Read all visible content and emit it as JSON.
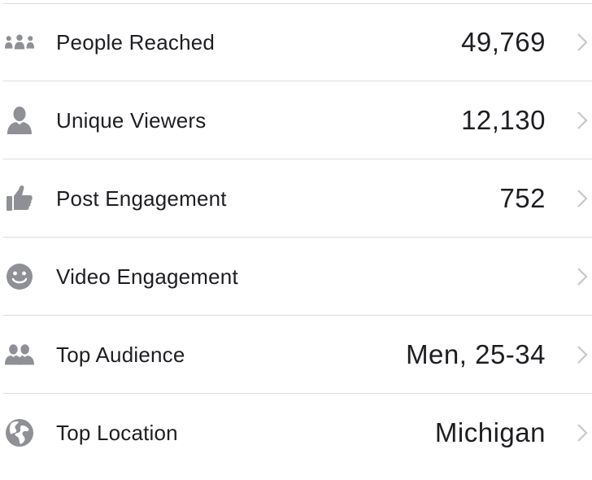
{
  "colors": {
    "text": "#1d1e22",
    "icon": "#8e9095",
    "chevron": "#c7c8cc",
    "divider": "#dcdde0"
  },
  "stats": [
    {
      "icon": "people-group-icon",
      "label": "People Reached",
      "value": "49,769"
    },
    {
      "icon": "person-icon",
      "label": "Unique Viewers",
      "value": "12,130"
    },
    {
      "icon": "thumbs-up-icon",
      "label": "Post Engagement",
      "value": "752"
    },
    {
      "icon": "smiley-face-icon",
      "label": "Video Engagement",
      "value": ""
    },
    {
      "icon": "two-people-icon",
      "label": "Top Audience",
      "value": "Men, 25-34"
    },
    {
      "icon": "globe-icon",
      "label": "Top Location",
      "value": "Michigan"
    }
  ]
}
